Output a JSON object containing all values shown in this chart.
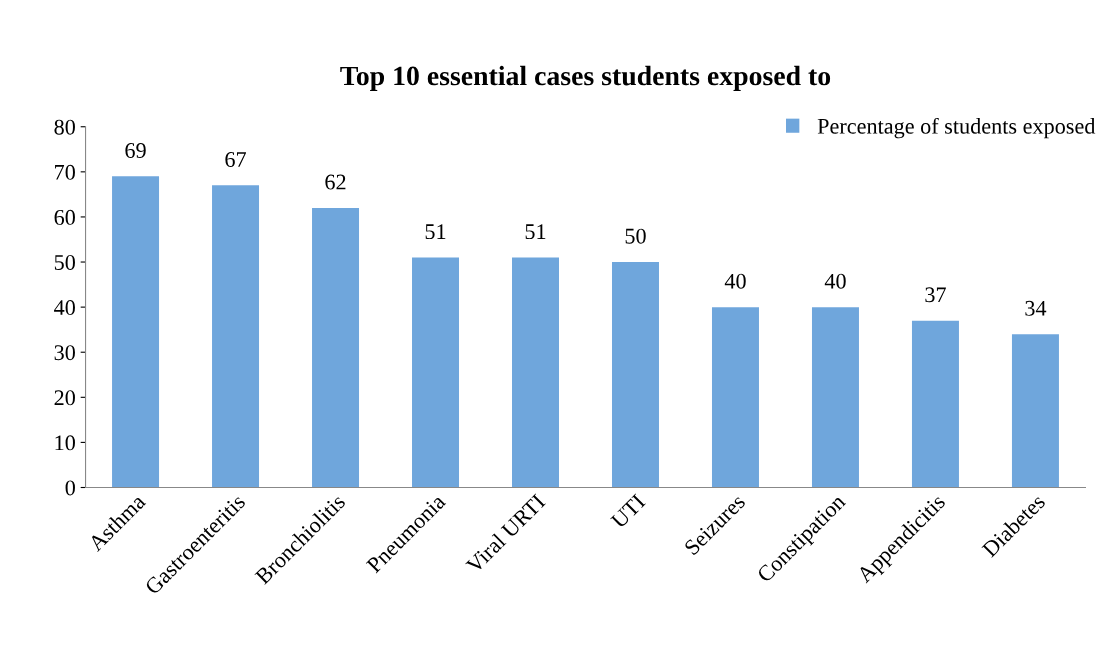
{
  "chart_data": {
    "type": "bar",
    "title": "Top 10 essential cases students exposed to",
    "categories": [
      "Asthma",
      "Gastroenteritis",
      "Bronchiolitis",
      "Pneumonia",
      "Viral URTI",
      "UTI",
      "Seizures",
      "Constipation",
      "Appendicitis",
      "Diabetes"
    ],
    "series": [
      {
        "name": "Percentage of students exposed",
        "color": "#6fa6dc",
        "values": [
          69,
          67,
          62,
          51,
          51,
          50,
          40,
          40,
          37,
          34
        ]
      }
    ],
    "ylim": [
      0,
      80
    ],
    "yticks": [
      0,
      10,
      20,
      30,
      40,
      50,
      60,
      70,
      80
    ],
    "data_labels": true,
    "legend": "top right",
    "grid": false
  }
}
